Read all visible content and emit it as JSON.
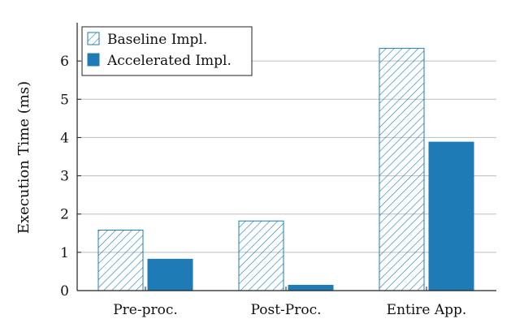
{
  "chart_data": {
    "type": "bar",
    "categories": [
      "Pre-proc.",
      "Post-Proc.",
      "Entire App."
    ],
    "series": [
      {
        "name": "Baseline Impl.",
        "values": [
          1.58,
          1.82,
          6.33
        ],
        "style": "hatched",
        "color": "#1f7bb5"
      },
      {
        "name": "Accelerated Impl.",
        "values": [
          0.82,
          0.14,
          3.88
        ],
        "style": "solid",
        "color": "#1f7bb5"
      }
    ],
    "title": "",
    "xlabel": "",
    "ylabel": "Execution Time (ms)",
    "ylim": [
      0,
      7
    ],
    "yticks": [
      0,
      1,
      2,
      3,
      4,
      5,
      6
    ],
    "grid": "horizontal",
    "legend_position": "top-left"
  }
}
